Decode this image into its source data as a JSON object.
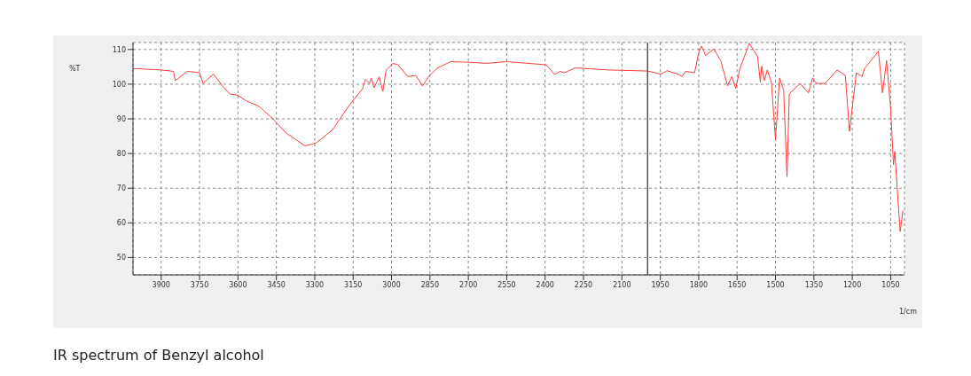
{
  "chart_data": {
    "type": "line",
    "xlabel": "1/cm",
    "ylabel": "%T",
    "x": [
      4010,
      3900,
      3852,
      3845,
      3798,
      3750,
      3736,
      3696,
      3658,
      3632,
      3600,
      3568,
      3520,
      3466,
      3413,
      3338,
      3295,
      3231,
      3167,
      3113,
      3102,
      3086,
      3079,
      3068,
      3048,
      3034,
      3021,
      2994,
      2975,
      2937,
      2905,
      2879,
      2855,
      2822,
      2769,
      2693,
      2628,
      2552,
      2396,
      2363,
      2342,
      2325,
      2282,
      2152,
      2000,
      1946,
      1924,
      1881,
      1865,
      1851,
      1816,
      1800,
      1789,
      1773,
      1741,
      1714,
      1698,
      1687,
      1671,
      1655,
      1639,
      1602,
      1570,
      1559,
      1554,
      1543,
      1532,
      1516,
      1500,
      1484,
      1468,
      1455,
      1446,
      1404,
      1371,
      1355,
      1339,
      1307,
      1259,
      1227,
      1211,
      1184,
      1162,
      1152,
      1098,
      1082,
      1066,
      1050,
      1039,
      1034,
      1013,
      1002
    ],
    "series": [
      {
        "color": "#ff3b3b",
        "values": [
          104.5,
          104.1,
          103.7,
          101,
          103.7,
          103.3,
          100.2,
          102.9,
          99.3,
          97.2,
          96.8,
          95.2,
          93.7,
          90.2,
          86,
          82.2,
          83,
          86.8,
          93.7,
          98.7,
          101.4,
          100.2,
          101.7,
          99,
          102.1,
          97.9,
          104.1,
          106,
          105.6,
          102.2,
          102.5,
          99.5,
          102.2,
          104.6,
          106.5,
          106.3,
          106,
          106.5,
          105.6,
          102.8,
          103.7,
          103.3,
          104.7,
          104.1,
          103.8,
          102.9,
          103.9,
          102.9,
          102.2,
          103.7,
          103.3,
          109.1,
          111,
          108.3,
          110.2,
          106.8,
          102.5,
          99.5,
          102.2,
          98.7,
          104.5,
          111.8,
          107.9,
          100.6,
          105.2,
          101,
          104.1,
          100.6,
          84,
          101.8,
          98.3,
          73.3,
          97.2,
          100.2,
          97.5,
          101.8,
          100.2,
          100.2,
          104.1,
          102.5,
          86.4,
          103.3,
          102.2,
          104.5,
          109.5,
          97.5,
          106.8,
          92.9,
          76.8,
          80.6,
          57.5,
          63.6
        ]
      }
    ],
    "xlim": [
      4010,
      996
    ],
    "xticks": [
      3900,
      3750,
      3600,
      3450,
      3300,
      3150,
      3000,
      2850,
      2700,
      2550,
      2400,
      2250,
      2100,
      1950,
      1800,
      1650,
      1500,
      1350,
      1200,
      1050
    ],
    "ylim": [
      45,
      112
    ],
    "yticks": [
      50,
      60,
      70,
      80,
      90,
      100,
      110
    ],
    "grid": true,
    "marker": "none",
    "line_style": "solid",
    "ref_lines": [
      {
        "axis": "x",
        "value": 2000,
        "color": "#000000"
      }
    ],
    "annotations": [
      "IR spectrum of Benzyl alcohol"
    ]
  }
}
